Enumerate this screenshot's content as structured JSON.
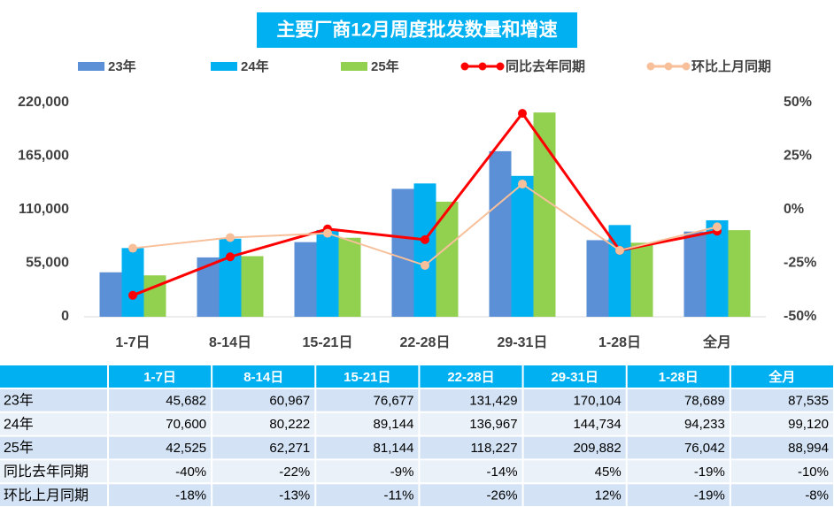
{
  "chart_data": {
    "type": "bar",
    "title": "主要厂商12月周度批发数量和增速",
    "categories": [
      "1-7日",
      "8-14日",
      "15-21日",
      "22-28日",
      "29-31日",
      "1-28日",
      "全月"
    ],
    "series": [
      {
        "name": "23年",
        "type": "bar",
        "color": "#5b8fd6",
        "values": [
          45682,
          60967,
          76677,
          131429,
          170104,
          78689,
          87535
        ],
        "value_labels": [
          "45,682",
          "60,967",
          "76,677",
          "131,429",
          "170,104",
          "78,689",
          "87,535"
        ]
      },
      {
        "name": "24年",
        "type": "bar",
        "color": "#00b0f0",
        "values": [
          70600,
          80222,
          89144,
          136967,
          144734,
          94233,
          99120
        ],
        "value_labels": [
          "70,600",
          "80,222",
          "89,144",
          "136,967",
          "144,734",
          "94,233",
          "99,120"
        ]
      },
      {
        "name": "25年",
        "type": "bar",
        "color": "#92d050",
        "values": [
          42525,
          62271,
          81144,
          118227,
          209882,
          76042,
          88994
        ],
        "value_labels": [
          "42,525",
          "62,271",
          "81,144",
          "118,227",
          "209,882",
          "76,042",
          "88,994"
        ]
      },
      {
        "name": "同比去年同期",
        "type": "line",
        "axis": "y2",
        "color": "#ff0000",
        "values": [
          -40,
          -22,
          -9,
          -14,
          45,
          -19,
          -10
        ],
        "value_labels": [
          "-40%",
          "-22%",
          "-9%",
          "-14%",
          "45%",
          "-19%",
          "-10%"
        ]
      },
      {
        "name": "环比上月同期",
        "type": "line",
        "axis": "y2",
        "color": "#f8c09a",
        "values": [
          -18,
          -13,
          -11,
          -26,
          12,
          -19,
          -8
        ],
        "value_labels": [
          "-18%",
          "-13%",
          "-11%",
          "-26%",
          "12%",
          "-19%",
          "-8%"
        ]
      }
    ],
    "ylim": [
      0,
      220000
    ],
    "yticks": [
      0,
      {
        "value": 55000,
        "label": "55,000"
      },
      {
        "value": 110000,
        "label": "110,000"
      },
      {
        "value": 165000,
        "label": "165,000"
      },
      {
        "value": 220000,
        "label": "220,000"
      }
    ],
    "y2lim": [
      -50,
      50
    ],
    "y2ticks": [
      {
        "value": -50,
        "label": "-50%"
      },
      {
        "value": -25,
        "label": "-25%"
      },
      {
        "value": 0,
        "label": "0%"
      },
      {
        "value": 25,
        "label": "25%"
      },
      {
        "value": 50,
        "label": "50%"
      }
    ],
    "grid": false
  }
}
